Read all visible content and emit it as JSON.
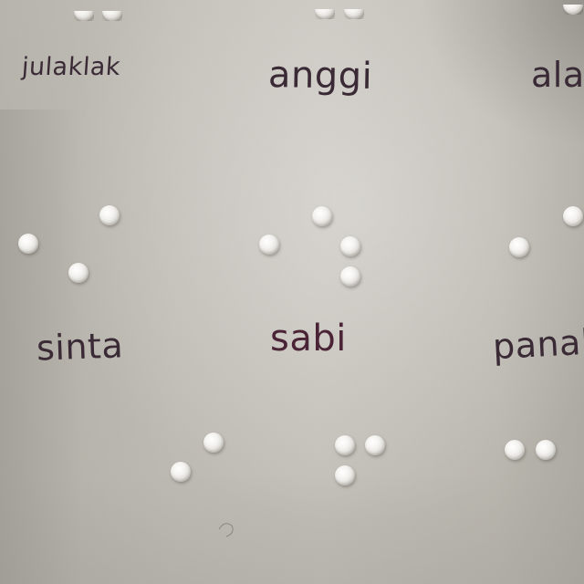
{
  "photo": {
    "subject": "",
    "words": [
      {
        "id": "julaklak",
        "text": "julaklak"
      },
      {
        "id": "anggi",
        "text": "anggi"
      },
      {
        "id": "ala",
        "text": "ala"
      },
      {
        "id": "sinta",
        "text": "sinta"
      },
      {
        "id": "sabi",
        "text": "sabi"
      },
      {
        "id": "panah",
        "text": "panah"
      }
    ]
  }
}
